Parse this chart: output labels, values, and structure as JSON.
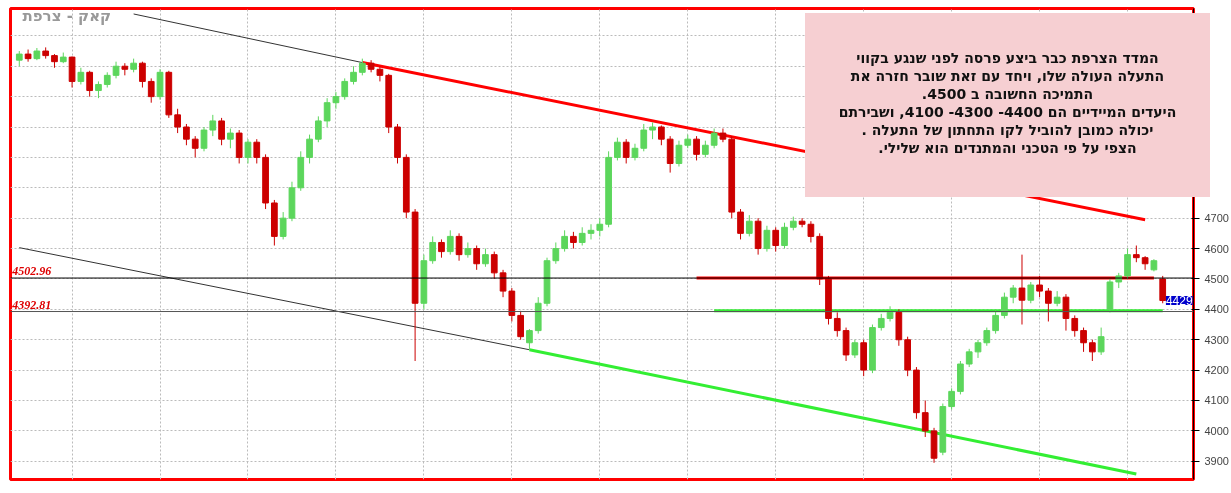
{
  "chart_data": {
    "type": "candlestick",
    "title": "קאק - צרפת",
    "categories": [
      null,
      null,
      null,
      null,
      null,
      null,
      null,
      null,
      null,
      null,
      null,
      null,
      null,
      null,
      null,
      null,
      null,
      null,
      null,
      null,
      null,
      null,
      null,
      null,
      null,
      null,
      null,
      null,
      null,
      null,
      null,
      null,
      null,
      null,
      null,
      null,
      null,
      null,
      null,
      null,
      null,
      null,
      null,
      null,
      null,
      null,
      null,
      null,
      null,
      null,
      null,
      null,
      null,
      null,
      null,
      null,
      null,
      null,
      null,
      null,
      null,
      null,
      null,
      null,
      null,
      null,
      null,
      null,
      null,
      null,
      null,
      null,
      null,
      null,
      null,
      null,
      null,
      null,
      null,
      null,
      null,
      null,
      null,
      null,
      null,
      null,
      null,
      null,
      null,
      null,
      null,
      null,
      null,
      null,
      null,
      null,
      null,
      null,
      null,
      null,
      null,
      null,
      null,
      null,
      null,
      null,
      null,
      null,
      null,
      null,
      null,
      null,
      null,
      null,
      null,
      null,
      null,
      null,
      null,
      null,
      null,
      null,
      null,
      null,
      null,
      null,
      null,
      null,
      null,
      null,
      null
    ],
    "ohlc": [
      [
        5220,
        5250,
        5200,
        5240
      ],
      [
        5240,
        5255,
        5215,
        5225
      ],
      [
        5225,
        5260,
        5220,
        5250
      ],
      [
        5250,
        5262,
        5225,
        5235
      ],
      [
        5235,
        5240,
        5195,
        5215
      ],
      [
        5215,
        5245,
        5210,
        5230
      ],
      [
        5230,
        5232,
        5130,
        5150
      ],
      [
        5150,
        5195,
        5140,
        5180
      ],
      [
        5180,
        5185,
        5100,
        5120
      ],
      [
        5120,
        5150,
        5095,
        5140
      ],
      [
        5140,
        5180,
        5130,
        5170
      ],
      [
        5170,
        5215,
        5160,
        5200
      ],
      [
        5200,
        5210,
        5170,
        5190
      ],
      [
        5190,
        5225,
        5180,
        5210
      ],
      [
        5210,
        5215,
        5130,
        5150
      ],
      [
        5150,
        5160,
        5080,
        5100
      ],
      [
        5100,
        5190,
        5090,
        5180
      ],
      [
        5180,
        5185,
        5030,
        5040
      ],
      [
        5040,
        5060,
        4980,
        5000
      ],
      [
        5000,
        5010,
        4940,
        4960
      ],
      [
        4960,
        4970,
        4900,
        4930
      ],
      [
        4930,
        5000,
        4920,
        4990
      ],
      [
        4990,
        5040,
        4970,
        5020
      ],
      [
        5020,
        5030,
        4940,
        4960
      ],
      [
        4960,
        4995,
        4930,
        4980
      ],
      [
        4980,
        4990,
        4880,
        4900
      ],
      [
        4900,
        4960,
        4880,
        4950
      ],
      [
        4950,
        4960,
        4880,
        4900
      ],
      [
        4900,
        4910,
        4730,
        4750
      ],
      [
        4750,
        4760,
        4610,
        4640
      ],
      [
        4640,
        4720,
        4630,
        4700
      ],
      [
        4700,
        4820,
        4690,
        4800
      ],
      [
        4800,
        4920,
        4790,
        4900
      ],
      [
        4900,
        4975,
        4880,
        4960
      ],
      [
        4960,
        5035,
        4950,
        5020
      ],
      [
        5020,
        5095,
        5000,
        5080
      ],
      [
        5080,
        5115,
        5060,
        5100
      ],
      [
        5100,
        5160,
        5090,
        5150
      ],
      [
        5150,
        5200,
        5140,
        5180
      ],
      [
        5180,
        5225,
        5170,
        5210
      ],
      [
        5210,
        5220,
        5180,
        5190
      ],
      [
        5190,
        5200,
        5150,
        5170
      ],
      [
        5170,
        5175,
        4980,
        5000
      ],
      [
        5000,
        5010,
        4880,
        4900
      ],
      [
        4900,
        4910,
        4700,
        4720
      ],
      [
        4720,
        4730,
        4230,
        4420
      ],
      [
        4420,
        4580,
        4400,
        4560
      ],
      [
        4560,
        4640,
        4550,
        4620
      ],
      [
        4620,
        4630,
        4570,
        4590
      ],
      [
        4590,
        4660,
        4580,
        4640
      ],
      [
        4640,
        4650,
        4560,
        4580
      ],
      [
        4580,
        4620,
        4570,
        4600
      ],
      [
        4600,
        4610,
        4530,
        4550
      ],
      [
        4550,
        4600,
        4540,
        4580
      ],
      [
        4580,
        4590,
        4500,
        4520
      ],
      [
        4520,
        4530,
        4440,
        4460
      ],
      [
        4460,
        4470,
        4360,
        4380
      ],
      [
        4380,
        4395,
        4300,
        4310
      ],
      [
        4290,
        4335,
        4268,
        4330
      ],
      [
        4330,
        4440,
        4320,
        4420
      ],
      [
        4420,
        4570,
        4410,
        4560
      ],
      [
        4560,
        4620,
        4550,
        4600
      ],
      [
        4600,
        4660,
        4590,
        4640
      ],
      [
        4640,
        4655,
        4600,
        4620
      ],
      [
        4620,
        4670,
        4610,
        4650
      ],
      [
        4650,
        4680,
        4630,
        4660
      ],
      [
        4660,
        4700,
        4640,
        4680
      ],
      [
        4680,
        4920,
        4670,
        4900
      ],
      [
        4900,
        4965,
        4890,
        4950
      ],
      [
        4950,
        4960,
        4880,
        4900
      ],
      [
        4900,
        4945,
        4890,
        4930
      ],
      [
        4930,
        5010,
        4920,
        4990
      ],
      [
        4990,
        5015,
        4960,
        5000
      ],
      [
        5000,
        5005,
        4940,
        4960
      ],
      [
        4960,
        4970,
        4850,
        4880
      ],
      [
        4880,
        4955,
        4870,
        4940
      ],
      [
        4940,
        4975,
        4930,
        4960
      ],
      [
        4960,
        4970,
        4890,
        4910
      ],
      [
        4910,
        4955,
        4900,
        4940
      ],
      [
        4940,
        4995,
        4930,
        4980
      ],
      [
        4980,
        4995,
        4950,
        4960
      ],
      [
        4960,
        4970,
        4700,
        4720
      ],
      [
        4720,
        4730,
        4630,
        4650
      ],
      [
        4650,
        4710,
        4640,
        4690
      ],
      [
        4690,
        4700,
        4580,
        4600
      ],
      [
        4600,
        4675,
        4590,
        4660
      ],
      [
        4660,
        4670,
        4590,
        4610
      ],
      [
        4610,
        4685,
        4600,
        4670
      ],
      [
        4670,
        4705,
        4660,
        4690
      ],
      [
        4690,
        4700,
        4670,
        4680
      ],
      [
        4680,
        4690,
        4620,
        4640
      ],
      [
        4640,
        4650,
        4480,
        4500
      ],
      [
        4500,
        4510,
        4350,
        4370
      ],
      [
        4370,
        4390,
        4310,
        4330
      ],
      [
        4330,
        4340,
        4230,
        4250
      ],
      [
        4250,
        4300,
        4240,
        4290
      ],
      [
        4290,
        4300,
        4180,
        4200
      ],
      [
        4200,
        4350,
        4190,
        4340
      ],
      [
        4340,
        4385,
        4330,
        4370
      ],
      [
        4370,
        4410,
        4360,
        4390
      ],
      [
        4390,
        4400,
        4280,
        4300
      ],
      [
        4300,
        4310,
        4180,
        4200
      ],
      [
        4200,
        4210,
        4040,
        4060
      ],
      [
        4060,
        4100,
        3980,
        4000
      ],
      [
        4000,
        4010,
        3895,
        3910
      ],
      [
        3930,
        4090,
        3920,
        4080
      ],
      [
        4080,
        4140,
        4070,
        4130
      ],
      [
        4130,
        4230,
        4120,
        4220
      ],
      [
        4220,
        4270,
        4210,
        4260
      ],
      [
        4260,
        4300,
        4240,
        4290
      ],
      [
        4290,
        4340,
        4280,
        4330
      ],
      [
        4330,
        4400,
        4320,
        4380
      ],
      [
        4380,
        4455,
        4370,
        4440
      ],
      [
        4440,
        4480,
        4420,
        4470
      ],
      [
        4470,
        4580,
        4350,
        4430
      ],
      [
        4430,
        4490,
        4420,
        4480
      ],
      [
        4480,
        4510,
        4440,
        4460
      ],
      [
        4460,
        4470,
        4360,
        4420
      ],
      [
        4420,
        4460,
        4410,
        4440
      ],
      [
        4440,
        4450,
        4330,
        4370
      ],
      [
        4370,
        4380,
        4310,
        4330
      ],
      [
        4330,
        4340,
        4260,
        4290
      ],
      [
        4290,
        4300,
        4230,
        4260
      ],
      [
        4260,
        4340,
        4250,
        4310
      ],
      [
        4400,
        4500,
        4390,
        4490
      ],
      [
        4490,
        4520,
        4470,
        4510
      ],
      [
        4510,
        4600,
        4500,
        4580
      ],
      [
        4580,
        4610,
        4555,
        4570
      ],
      [
        4570,
        4575,
        4530,
        4550
      ],
      [
        4530,
        4565,
        4525,
        4560
      ],
      [
        4500,
        4510,
        4420,
        4429
      ]
    ],
    "colors": [
      "#5cd65c",
      "#cc0000",
      "#5cd65c",
      "#cc0000",
      "#cc0000",
      "#5cd65c",
      "#cc0000",
      "#5cd65c",
      "#cc0000",
      "#5cd65c",
      "#5cd65c",
      "#5cd65c",
      "#cc0000",
      "#5cd65c",
      "#cc0000",
      "#cc0000",
      "#5cd65c",
      "#cc0000",
      "#cc0000",
      "#cc0000",
      "#cc0000",
      "#5cd65c",
      "#5cd65c",
      "#cc0000",
      "#5cd65c",
      "#cc0000",
      "#5cd65c",
      "#cc0000",
      "#cc0000",
      "#cc0000",
      "#5cd65c",
      "#5cd65c",
      "#5cd65c",
      "#5cd65c",
      "#5cd65c",
      "#5cd65c",
      "#5cd65c",
      "#5cd65c",
      "#5cd65c",
      "#5cd65c",
      "#cc0000",
      "#cc0000",
      "#cc0000",
      "#cc0000",
      "#cc0000",
      "#cc0000",
      "#5cd65c",
      "#5cd65c",
      "#cc0000",
      "#5cd65c",
      "#cc0000",
      "#5cd65c",
      "#cc0000",
      "#5cd65c",
      "#cc0000",
      "#cc0000",
      "#cc0000",
      "#cc0000",
      "#5cd65c",
      "#5cd65c",
      "#5cd65c",
      "#5cd65c",
      "#5cd65c",
      "#cc0000",
      "#5cd65c",
      "#5cd65c",
      "#5cd65c",
      "#5cd65c",
      "#5cd65c",
      "#cc0000",
      "#5cd65c",
      "#5cd65c",
      "#5cd65c",
      "#cc0000",
      "#cc0000",
      "#5cd65c",
      "#5cd65c",
      "#cc0000",
      "#5cd65c",
      "#5cd65c",
      "#cc0000",
      "#cc0000",
      "#cc0000",
      "#5cd65c",
      "#cc0000",
      "#5cd65c",
      "#cc0000",
      "#5cd65c",
      "#5cd65c",
      "#cc0000",
      "#cc0000",
      "#cc0000",
      "#cc0000",
      "#cc0000",
      "#cc0000",
      "#5cd65c",
      "#cc0000",
      "#5cd65c",
      "#5cd65c",
      "#5cd65c",
      "#cc0000",
      "#cc0000",
      "#cc0000",
      "#cc0000",
      "#cc0000",
      "#5cd65c",
      "#5cd65c",
      "#5cd65c",
      "#5cd65c",
      "#5cd65c",
      "#5cd65c",
      "#5cd65c",
      "#5cd65c",
      "#5cd65c",
      "#cc0000",
      "#5cd65c",
      "#cc0000",
      "#cc0000",
      "#5cd65c",
      "#cc0000",
      "#cc0000",
      "#cc0000",
      "#cc0000",
      "#5cd65c",
      "#5cd65c",
      "#5cd65c",
      "#5cd65c",
      "#cc0000",
      "#cc0000",
      "#5cd65c",
      "#cc0000"
    ],
    "series": [
      {
        "type": "line",
        "color": "#333333",
        "values": [
          null,
          null,
          null,
          null,
          null,
          null,
          null,
          null,
          null,
          null,
          null,
          null,
          null,
          5372,
          null,
          null,
          null,
          null,
          null,
          null,
          null,
          null,
          null,
          null,
          null,
          null,
          null,
          null,
          null,
          null,
          null,
          null,
          null,
          null,
          null,
          null,
          null,
          null,
          null,
          5212,
          null,
          null,
          null,
          null,
          null,
          null,
          null,
          null,
          null,
          null,
          null,
          null,
          null,
          null,
          null,
          null,
          null,
          null,
          null,
          null,
          null,
          null,
          null,
          null,
          null,
          null,
          null,
          null,
          null,
          null,
          null,
          null,
          null,
          null,
          null,
          null,
          null,
          null,
          null,
          null,
          null,
          null,
          null,
          null,
          null,
          null,
          null,
          null,
          null,
          null,
          null,
          null,
          null,
          null,
          null,
          null,
          null,
          null,
          null,
          null,
          null,
          null,
          null,
          null,
          null,
          null,
          null,
          null,
          null,
          null,
          null,
          null,
          null,
          null,
          null,
          null,
          null,
          null,
          null,
          null,
          null,
          null,
          null,
          null,
          null,
          null,
          null,
          null,
          null,
          null,
          null
        ]
      },
      {
        "type": "line",
        "color": "#ff0000",
        "values": [
          null,
          null,
          null,
          null,
          null,
          null,
          null,
          null,
          null,
          null,
          null,
          null,
          null,
          null,
          null,
          null,
          null,
          null,
          null,
          null,
          null,
          null,
          null,
          null,
          null,
          null,
          null,
          null,
          null,
          null,
          null,
          null,
          null,
          null,
          null,
          null,
          null,
          null,
          null,
          5212,
          null,
          null,
          null,
          null,
          null,
          null,
          null,
          null,
          null,
          null,
          null,
          null,
          null,
          null,
          null,
          null,
          null,
          null,
          null,
          null,
          null,
          null,
          null,
          null,
          null,
          null,
          null,
          null,
          null,
          null,
          null,
          null,
          null,
          null,
          null,
          null,
          null,
          null,
          null,
          null,
          null,
          null,
          null,
          null,
          null,
          null,
          null,
          null,
          null,
          null,
          null,
          null,
          null,
          null,
          null,
          null,
          null,
          null,
          null,
          null,
          null,
          null,
          null,
          null,
          null,
          null,
          null,
          null,
          null,
          null,
          null,
          null,
          null,
          null,
          null,
          null,
          null,
          null,
          null,
          null,
          null,
          null,
          null,
          null,
          null,
          null,
          null,
          null,
          4695,
          null,
          null
        ]
      },
      {
        "type": "line",
        "color": "#333333",
        "values": [
          4603,
          null,
          null,
          null,
          null,
          null,
          null,
          null,
          null,
          null,
          null,
          null,
          null,
          null,
          null,
          null,
          null,
          null,
          null,
          null,
          null,
          null,
          null,
          null,
          null,
          null,
          null,
          null,
          null,
          null,
          null,
          null,
          null,
          null,
          null,
          null,
          null,
          null,
          null,
          null,
          null,
          null,
          null,
          null,
          null,
          null,
          null,
          null,
          null,
          null,
          null,
          null,
          null,
          null,
          null,
          null,
          null,
          null,
          4267,
          null,
          null,
          null,
          null,
          null,
          null,
          null,
          null,
          null,
          null,
          null,
          null,
          null,
          null,
          null,
          null,
          null,
          null,
          null,
          null,
          null,
          null,
          null,
          null,
          null,
          null,
          null,
          null,
          null,
          null,
          null,
          null,
          null,
          null,
          null,
          null,
          null,
          null,
          null,
          null,
          null,
          null,
          null,
          null,
          null,
          null,
          null,
          null,
          null,
          null,
          null,
          null,
          null,
          null,
          null,
          null,
          null,
          null,
          null,
          null,
          null,
          null,
          null,
          null,
          null,
          null,
          null,
          null,
          null,
          null,
          null,
          null
        ]
      },
      {
        "type": "line",
        "color": "#33ee33",
        "values": [
          null,
          null,
          null,
          null,
          null,
          null,
          null,
          null,
          null,
          null,
          null,
          null,
          null,
          null,
          null,
          null,
          null,
          null,
          null,
          null,
          null,
          null,
          null,
          null,
          null,
          null,
          null,
          null,
          null,
          null,
          null,
          null,
          null,
          null,
          null,
          null,
          null,
          null,
          null,
          null,
          null,
          null,
          null,
          null,
          null,
          null,
          null,
          null,
          null,
          null,
          null,
          null,
          null,
          null,
          null,
          null,
          null,
          null,
          4267,
          null,
          null,
          null,
          null,
          null,
          null,
          null,
          null,
          null,
          null,
          null,
          null,
          null,
          null,
          null,
          null,
          null,
          null,
          null,
          null,
          null,
          null,
          null,
          null,
          null,
          null,
          null,
          null,
          null,
          null,
          null,
          null,
          null,
          null,
          null,
          null,
          null,
          null,
          null,
          null,
          null,
          null,
          null,
          null,
          null,
          null,
          null,
          null,
          null,
          null,
          null,
          null,
          null,
          null,
          null,
          null,
          null,
          null,
          null,
          null,
          null,
          null,
          null,
          null,
          null,
          null,
          null,
          null,
          3858,
          null,
          null,
          null
        ]
      },
      {
        "type": "line",
        "color": "#ff0000",
        "values": [
          null,
          null,
          null,
          null,
          null,
          null,
          null,
          null,
          null,
          null,
          null,
          null,
          null,
          null,
          null,
          null,
          null,
          null,
          null,
          null,
          null,
          null,
          null,
          null,
          null,
          null,
          null,
          null,
          null,
          null,
          null,
          null,
          null,
          null,
          null,
          null,
          null,
          null,
          null,
          null,
          null,
          null,
          null,
          null,
          null,
          null,
          null,
          null,
          null,
          null,
          null,
          null,
          null,
          null,
          null,
          null,
          null,
          null,
          null,
          null,
          null,
          null,
          null,
          null,
          null,
          null,
          null,
          null,
          null,
          null,
          null,
          null,
          null,
          null,
          null,
          null,
          null,
          4503,
          null,
          null,
          null,
          null,
          null,
          null,
          null,
          null,
          null,
          null,
          null,
          null,
          null,
          null,
          null,
          null,
          null,
          null,
          null,
          null,
          null,
          null,
          null,
          null,
          null,
          null,
          null,
          null,
          null,
          null,
          null,
          null,
          null,
          null,
          null,
          null,
          null,
          null,
          null,
          null,
          null,
          null,
          null,
          null,
          null,
          null,
          null,
          null,
          null,
          null,
          null,
          4503,
          null
        ]
      },
      {
        "type": "line",
        "color": "#33ee33",
        "values": [
          null,
          null,
          null,
          null,
          null,
          null,
          null,
          null,
          null,
          null,
          null,
          null,
          null,
          null,
          null,
          null,
          null,
          null,
          null,
          null,
          null,
          null,
          null,
          null,
          null,
          null,
          null,
          null,
          null,
          null,
          null,
          null,
          null,
          null,
          null,
          null,
          null,
          null,
          null,
          null,
          null,
          null,
          null,
          null,
          null,
          null,
          null,
          null,
          null,
          null,
          null,
          null,
          null,
          null,
          null,
          null,
          null,
          null,
          null,
          null,
          null,
          null,
          null,
          null,
          null,
          null,
          null,
          null,
          null,
          null,
          null,
          null,
          null,
          null,
          null,
          null,
          null,
          null,
          null,
          4395,
          null,
          null,
          null,
          null,
          null,
          null,
          null,
          null,
          null,
          null,
          null,
          null,
          null,
          null,
          null,
          null,
          null,
          null,
          null,
          null,
          null,
          null,
          null,
          null,
          null,
          null,
          null,
          null,
          null,
          null,
          null,
          null,
          null,
          null,
          null,
          null,
          null,
          null,
          null,
          null,
          null,
          null,
          null,
          null,
          null,
          null,
          null,
          null,
          null,
          null,
          4395
        ]
      }
    ],
    "ref_lines": [
      {
        "axis": "y",
        "value": 4502.96,
        "label": "4502.96",
        "color": "#000000"
      },
      {
        "axis": "y",
        "value": 4392.81,
        "label": "4392.81",
        "color": "#555555"
      }
    ],
    "annotations": [
      "המדד הצרפת כבר ביצע פרסה  לפני שנגע בקווי\nהתעלה העולה שלו, ויחד עם זאת שובר חזרה את\nהתמיכה החשובה ב 4500.\nהיעדים המיידיים הם  4400- 4300- 4100, ושבירתם\nיכולה כמובן להוביל לקו התחתון של התעלה .\nהצפי  על פי הטכני והמתנדים הוא שלילי.",
      {
        "text": "4429",
        "y": 4429
      }
    ],
    "ylim": [
      3840,
      5390
    ],
    "yticks": [
      3900,
      4000,
      4100,
      4200,
      4300,
      4400,
      4500,
      4600,
      4700,
      {
        "value": 4800,
        "label": null
      },
      {
        "value": 4900,
        "label": null
      },
      {
        "value": 5000,
        "label": null
      },
      {
        "value": 5100,
        "label": null
      },
      {
        "value": 5200,
        "label": null
      },
      {
        "value": 5300,
        "label": null
      }
    ],
    "tick_labels": "y",
    "grid": true
  }
}
